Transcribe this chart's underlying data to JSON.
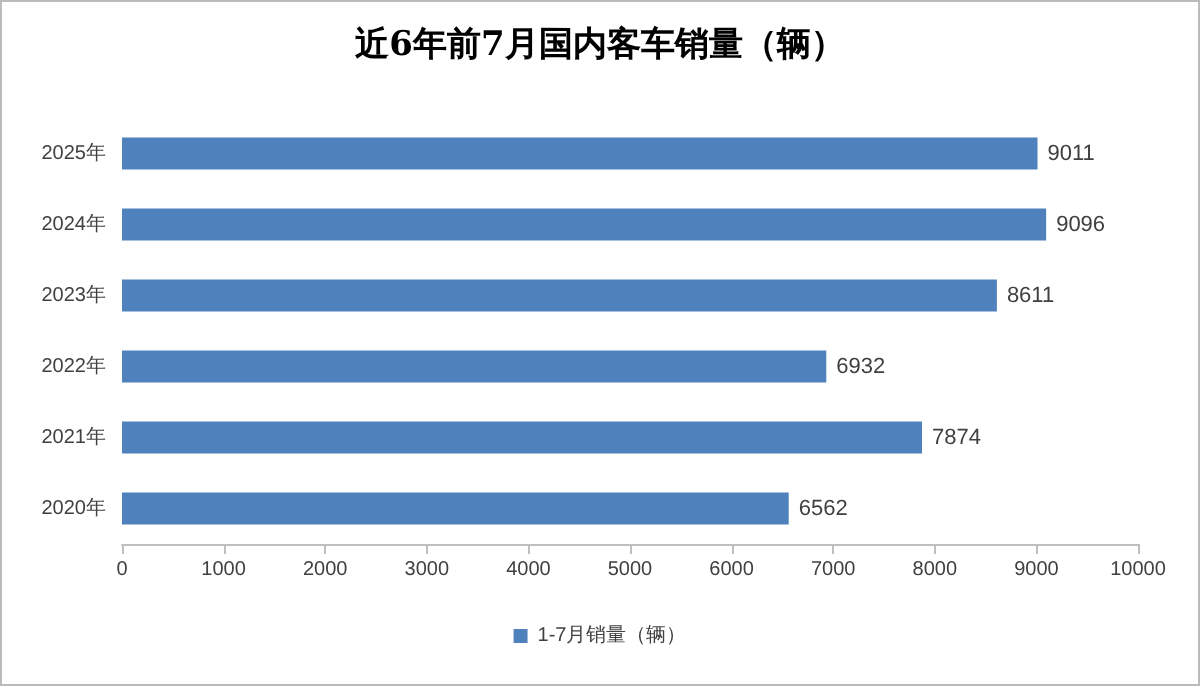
{
  "chart_data": {
    "type": "bar",
    "orientation": "horizontal",
    "title": "近6年前7月国内客车销量（辆）",
    "categories": [
      "2025年",
      "2024年",
      "2023年",
      "2022年",
      "2021年",
      "2020年"
    ],
    "series": [
      {
        "name": "1-7月销量（辆）",
        "color": "#4f81bd",
        "values": [
          9011,
          9096,
          8611,
          6932,
          7874,
          6562
        ]
      }
    ],
    "xlim": [
      0,
      10000
    ],
    "xticks": [
      0,
      1000,
      2000,
      3000,
      4000,
      5000,
      6000,
      7000,
      8000,
      9000,
      10000
    ],
    "data_labels": true,
    "legend": "bottom",
    "grid": false
  }
}
